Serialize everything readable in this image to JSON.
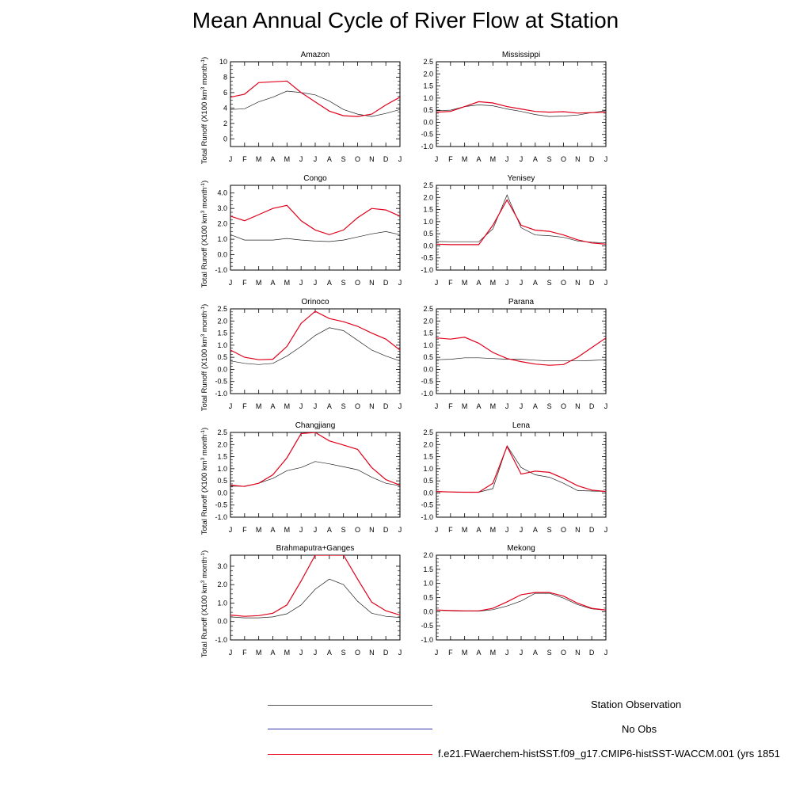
{
  "title": "Mean Annual Cycle of River Flow at Station",
  "ylabel_text": "Total Runoff (X100 km",
  "ylabel_sup": "3",
  "ylabel_mid": " month",
  "ylabel_sup2": "-1",
  "ylabel_end": ")",
  "months": [
    "J",
    "F",
    "M",
    "A",
    "M",
    "J",
    "J",
    "A",
    "S",
    "O",
    "N",
    "D",
    "J"
  ],
  "legend": [
    {
      "label": "Station Observation",
      "color": "#555555"
    },
    {
      "label": "No Obs",
      "color": "#3333aa"
    },
    {
      "label": "f.e21.FWaerchem-histSST.f09_g17.CMIP6-histSST-WACCM.001 (yrs 1851",
      "color": "#e8001c"
    }
  ],
  "colors": {
    "obs": "#222222",
    "model": "#e0001b"
  },
  "chart_data": [
    {
      "type": "line",
      "title": "Amazon",
      "ylim": [
        -1,
        10
      ],
      "yticks": [
        0,
        2,
        4,
        6,
        8,
        10
      ],
      "ytick_labels": [
        "0",
        "2",
        "4",
        "6",
        "8",
        "10"
      ],
      "series": [
        {
          "name": "Station Observation",
          "values": [
            3.8,
            3.9,
            4.8,
            5.4,
            6.2,
            6.0,
            5.7,
            4.9,
            3.8,
            3.2,
            2.9,
            3.3,
            3.8
          ]
        },
        {
          "values": [
            5.4,
            5.8,
            7.3,
            7.4,
            7.5,
            6.0,
            4.8,
            3.6,
            3.0,
            2.9,
            3.2,
            4.4,
            5.4
          ]
        }
      ]
    },
    {
      "type": "line",
      "title": "Mississippi",
      "ylim": [
        -1,
        2.5
      ],
      "yticks": [
        -1,
        -0.5,
        0,
        0.5,
        1,
        1.5,
        2,
        2.5
      ],
      "ytick_labels": [
        "-1.0",
        "-0.5",
        "0.0",
        "0.5",
        "1.0",
        "1.5",
        "2.0",
        "2.5"
      ],
      "series": [
        {
          "name": "Station Observation",
          "values": [
            0.48,
            0.5,
            0.65,
            0.72,
            0.68,
            0.55,
            0.45,
            0.32,
            0.24,
            0.26,
            0.3,
            0.4,
            0.48
          ]
        },
        {
          "values": [
            0.42,
            0.45,
            0.65,
            0.85,
            0.8,
            0.65,
            0.55,
            0.45,
            0.42,
            0.44,
            0.38,
            0.4,
            0.42
          ]
        }
      ]
    },
    {
      "type": "line",
      "title": "Congo",
      "ylim": [
        -1,
        4.5
      ],
      "yticks": [
        -1,
        0,
        1,
        2,
        3,
        4
      ],
      "ytick_labels": [
        "-1.0",
        "0.0",
        "1.0",
        "2.0",
        "3.0",
        "4.0"
      ],
      "series": [
        {
          "name": "Station Observation",
          "values": [
            1.3,
            0.95,
            0.95,
            0.95,
            1.05,
            0.95,
            0.88,
            0.85,
            0.95,
            1.15,
            1.35,
            1.5,
            1.3
          ]
        },
        {
          "values": [
            2.5,
            2.2,
            2.6,
            3.0,
            3.2,
            2.2,
            1.6,
            1.3,
            1.6,
            2.4,
            3.0,
            2.9,
            2.5
          ]
        }
      ]
    },
    {
      "type": "line",
      "title": "Yenisey",
      "ylim": [
        -1,
        2.5
      ],
      "yticks": [
        -1,
        -0.5,
        0,
        0.5,
        1,
        1.5,
        2,
        2.5
      ],
      "ytick_labels": [
        "-1.0",
        "-0.5",
        "0.0",
        "0.5",
        "1.0",
        "1.5",
        "2.0",
        "2.5"
      ],
      "series": [
        {
          "name": "Station Observation",
          "values": [
            0.18,
            0.17,
            0.17,
            0.17,
            0.7,
            2.1,
            0.75,
            0.45,
            0.42,
            0.35,
            0.2,
            0.15,
            0.12
          ]
        },
        {
          "values": [
            0.07,
            0.05,
            0.05,
            0.05,
            0.85,
            1.9,
            0.85,
            0.65,
            0.6,
            0.45,
            0.25,
            0.12,
            0.07
          ]
        }
      ]
    },
    {
      "type": "line",
      "title": "Orinoco",
      "ylim": [
        -1,
        2.5
      ],
      "yticks": [
        -1,
        -0.5,
        0,
        0.5,
        1,
        1.5,
        2,
        2.5
      ],
      "ytick_labels": [
        "-1.0",
        "-0.5",
        "0.0",
        "0.5",
        "1.0",
        "1.5",
        "2.0",
        "2.5"
      ],
      "series": [
        {
          "name": "Station Observation",
          "values": [
            0.35,
            0.25,
            0.2,
            0.25,
            0.55,
            0.95,
            1.4,
            1.72,
            1.6,
            1.2,
            0.8,
            0.55,
            0.35
          ]
        },
        {
          "values": [
            0.8,
            0.5,
            0.4,
            0.42,
            0.95,
            1.9,
            2.4,
            2.1,
            1.97,
            1.78,
            1.5,
            1.25,
            0.8
          ]
        }
      ]
    },
    {
      "type": "line",
      "title": "Parana",
      "ylim": [
        -1,
        2.5
      ],
      "yticks": [
        -1,
        -0.5,
        0,
        0.5,
        1,
        1.5,
        2,
        2.5
      ],
      "ytick_labels": [
        "-1.0",
        "-0.5",
        "0.0",
        "0.5",
        "1.0",
        "1.5",
        "2.0",
        "2.5"
      ],
      "series": [
        {
          "name": "Station Observation",
          "values": [
            0.4,
            0.42,
            0.48,
            0.48,
            0.45,
            0.42,
            0.42,
            0.38,
            0.35,
            0.35,
            0.35,
            0.37,
            0.4
          ]
        },
        {
          "values": [
            1.3,
            1.25,
            1.33,
            1.08,
            0.7,
            0.45,
            0.32,
            0.22,
            0.17,
            0.2,
            0.5,
            0.9,
            1.3
          ]
        }
      ]
    },
    {
      "type": "line",
      "title": "Changjiang",
      "ylim": [
        -1,
        2.5
      ],
      "yticks": [
        -1,
        -0.5,
        0,
        0.5,
        1,
        1.5,
        2,
        2.5
      ],
      "ytick_labels": [
        "-1.0",
        "-0.5",
        "0.0",
        "0.5",
        "1.0",
        "1.5",
        "2.0",
        "2.5"
      ],
      "series": [
        {
          "name": "Station Observation",
          "values": [
            0.28,
            0.28,
            0.4,
            0.6,
            0.92,
            1.05,
            1.3,
            1.2,
            1.08,
            0.96,
            0.65,
            0.4,
            0.3
          ]
        },
        {
          "values": [
            0.32,
            0.27,
            0.4,
            0.75,
            1.45,
            2.45,
            2.5,
            2.15,
            1.98,
            1.8,
            1.05,
            0.55,
            0.32
          ]
        }
      ]
    },
    {
      "type": "line",
      "title": "Lena",
      "ylim": [
        -1,
        2.5
      ],
      "yticks": [
        -1,
        -0.5,
        0,
        0.5,
        1,
        1.5,
        2,
        2.5
      ],
      "ytick_labels": [
        "-1.0",
        "-0.5",
        "0.0",
        "0.5",
        "1.0",
        "1.5",
        "2.0",
        "2.5"
      ],
      "series": [
        {
          "name": "Station Observation",
          "values": [
            0.06,
            0.04,
            0.03,
            0.03,
            0.18,
            1.95,
            1.05,
            0.75,
            0.65,
            0.4,
            0.1,
            0.08,
            0.06
          ]
        },
        {
          "values": [
            0.06,
            0.04,
            0.03,
            0.03,
            0.4,
            1.92,
            0.78,
            0.9,
            0.85,
            0.6,
            0.3,
            0.12,
            0.06
          ]
        }
      ]
    },
    {
      "type": "line",
      "title": "Brahmaputra+Ganges",
      "ylim": [
        -1,
        3.6
      ],
      "yticks": [
        -1,
        0,
        1,
        2,
        3
      ],
      "ytick_labels": [
        "-1.0",
        "0.0",
        "1.0",
        "2.0",
        "3.0"
      ],
      "series": [
        {
          "name": "Station Observation",
          "values": [
            0.25,
            0.2,
            0.2,
            0.25,
            0.42,
            0.9,
            1.75,
            2.3,
            2.0,
            1.1,
            0.45,
            0.28,
            0.22
          ]
        },
        {
          "values": [
            0.35,
            0.28,
            0.32,
            0.45,
            0.9,
            2.2,
            3.6,
            3.6,
            3.6,
            2.3,
            1.05,
            0.58,
            0.35
          ]
        }
      ]
    },
    {
      "type": "line",
      "title": "Mekong",
      "ylim": [
        -1,
        2
      ],
      "yticks": [
        -1,
        -0.5,
        0,
        0.5,
        1,
        1.5,
        2
      ],
      "ytick_labels": [
        "-1.0",
        "-0.5",
        "0.0",
        "0.5",
        "1.0",
        "1.5",
        "2.0"
      ],
      "series": [
        {
          "name": "Station Observation",
          "values": [
            0.05,
            0.03,
            0.02,
            0.02,
            0.07,
            0.2,
            0.38,
            0.65,
            0.65,
            0.48,
            0.25,
            0.1,
            0.05
          ]
        },
        {
          "values": [
            0.06,
            0.04,
            0.03,
            0.03,
            0.12,
            0.35,
            0.6,
            0.68,
            0.68,
            0.55,
            0.3,
            0.12,
            0.06
          ]
        }
      ]
    }
  ]
}
